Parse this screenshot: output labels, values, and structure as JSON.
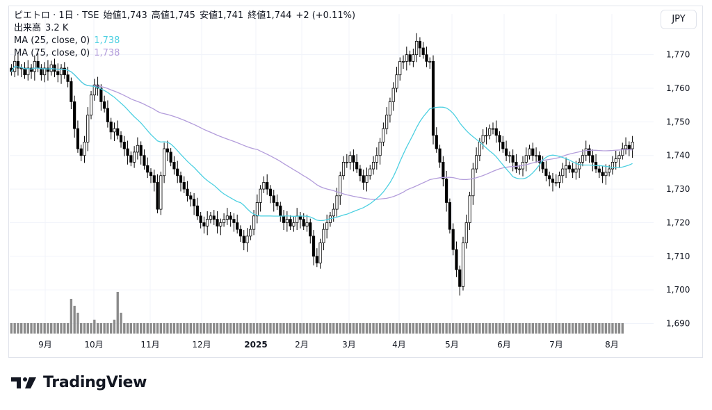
{
  "legend": {
    "title": "ピエトロ · 1日 · TSE",
    "open_label": "始値",
    "open": "1,743",
    "high_label": "高値",
    "high": "1,745",
    "low_label": "安値",
    "low": "1,741",
    "close_label": "終値",
    "close": "1,744",
    "change": "+2 (+0.11%)",
    "volume_label": "出来高",
    "volume": "3.2 K",
    "ma25_label": "MA (25, close, 0)",
    "ma25_value": "1,738",
    "ma75_label": "MA (75, close, 0)",
    "ma75_value": "1,738"
  },
  "currency": "JPY",
  "brand": {
    "name": "TradingView",
    "logo": "tradingview-logo-icon"
  },
  "colors": {
    "up": "#ffffff",
    "down": "#000000",
    "ma25": "#4dd0e1",
    "ma75": "#b39ddb",
    "volume": "#8a8a8a",
    "grid": "#f0f3fa"
  },
  "chart_data": {
    "type": "candlestick",
    "y_ticks": [
      "1,690",
      "1,700",
      "1,710",
      "1,720",
      "1,730",
      "1,740",
      "1,750",
      "1,760",
      "1,770"
    ],
    "y_range": [
      1687,
      1778
    ],
    "x_ticks": [
      "9月",
      "10月",
      "11月",
      "12月",
      "2025",
      "2月",
      "3月",
      "4月",
      "5月",
      "6月",
      "7月",
      "8月"
    ],
    "close_approx": [
      1765,
      1768,
      1766,
      1766,
      1764,
      1766,
      1765,
      1768,
      1766,
      1764,
      1766,
      1765,
      1767,
      1765,
      1764,
      1766,
      1764,
      1762,
      1756,
      1748,
      1742,
      1740,
      1744,
      1752,
      1758,
      1761,
      1760,
      1756,
      1754,
      1750,
      1747,
      1748,
      1746,
      1744,
      1742,
      1740,
      1738,
      1741,
      1743,
      1740,
      1737,
      1735,
      1734,
      1732,
      1724,
      1734,
      1742,
      1741,
      1738,
      1736,
      1734,
      1732,
      1730,
      1728,
      1727,
      1725,
      1722,
      1720,
      1719,
      1721,
      1722,
      1721,
      1719,
      1720,
      1721,
      1722,
      1721,
      1720,
      1718,
      1716,
      1714,
      1716,
      1718,
      1722,
      1726,
      1730,
      1732,
      1730,
      1728,
      1726,
      1725,
      1722,
      1720,
      1721,
      1719,
      1720,
      1722,
      1721,
      1719,
      1720,
      1716,
      1710,
      1708,
      1714,
      1718,
      1720,
      1722,
      1724,
      1728,
      1734,
      1738,
      1738,
      1740,
      1738,
      1736,
      1734,
      1732,
      1734,
      1736,
      1738,
      1740,
      1744,
      1748,
      1752,
      1756,
      1760,
      1764,
      1768,
      1768,
      1770,
      1768,
      1770,
      1774,
      1772,
      1770,
      1768,
      1768,
      1746,
      1742,
      1738,
      1733,
      1726,
      1718,
      1712,
      1706,
      1701,
      1714,
      1720,
      1728,
      1736,
      1740,
      1744,
      1746,
      1746,
      1748,
      1748,
      1746,
      1744,
      1742,
      1740,
      1740,
      1738,
      1736,
      1736,
      1738,
      1740,
      1742,
      1740,
      1740,
      1738,
      1736,
      1734,
      1733,
      1732,
      1732,
      1734,
      1736,
      1737,
      1736,
      1735,
      1736,
      1738,
      1740,
      1742,
      1740,
      1738,
      1736,
      1735,
      1734,
      1735,
      1736,
      1738,
      1739,
      1740,
      1742,
      1743,
      1742,
      1744
    ],
    "volume_approx_k": [
      3,
      3,
      3,
      3,
      3,
      3,
      3,
      3,
      3,
      3,
      3,
      3,
      3,
      3,
      3,
      3,
      3,
      3,
      10,
      8,
      6,
      3,
      3,
      3,
      3,
      4,
      3,
      3,
      3,
      3,
      3,
      4,
      12,
      6,
      3,
      3,
      3,
      3,
      3,
      3,
      3,
      3,
      3,
      3,
      3,
      3,
      3,
      3,
      3,
      3,
      3,
      3,
      3,
      3,
      3,
      3,
      3,
      3,
      3,
      3,
      3,
      3,
      3,
      3,
      3,
      3,
      3,
      3,
      3,
      3,
      3,
      3,
      3,
      3,
      3,
      3,
      3,
      3,
      3,
      3,
      3,
      3,
      3,
      3,
      3,
      3,
      3,
      3,
      3,
      3,
      3,
      3,
      3,
      3,
      3,
      3,
      3,
      3,
      3,
      3,
      3,
      3,
      3,
      3,
      3,
      3,
      3,
      3,
      3,
      3,
      3,
      3,
      3,
      3,
      3,
      3,
      3,
      3,
      3,
      3,
      3,
      3,
      3,
      3,
      3,
      3,
      3,
      3,
      3,
      3,
      3,
      3,
      3,
      3,
      3,
      3,
      3,
      3,
      3,
      3,
      3,
      3,
      3,
      3,
      3,
      3,
      3,
      3,
      3,
      3,
      3,
      3,
      3,
      3,
      3,
      3,
      3,
      3,
      3,
      3,
      3,
      3,
      3,
      3,
      3,
      3,
      3,
      3,
      3,
      3,
      3,
      3,
      3,
      3,
      3,
      3,
      3,
      3,
      3,
      3,
      3,
      3,
      3,
      3,
      3
    ]
  }
}
